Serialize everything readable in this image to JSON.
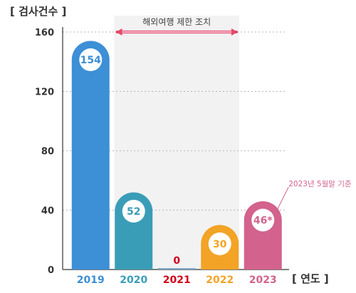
{
  "chart_data": {
    "type": "bar",
    "y_axis_title": "[ 검사건수 ]",
    "x_axis_title": "[ 연도 ]",
    "ylim": [
      0,
      160
    ],
    "y_ticks": [
      "0",
      "40",
      "80",
      "120",
      "160"
    ],
    "y_tick_values": [
      0,
      40,
      80,
      120,
      160
    ],
    "grid": "dotted horizontal",
    "categories": [
      "2019",
      "2020",
      "2021",
      "2022",
      "2023"
    ],
    "values": [
      154,
      52,
      0,
      30,
      46
    ],
    "value_labels": [
      "154",
      "52",
      "0",
      "30",
      "46*"
    ],
    "colors": [
      "#3d8fd6",
      "#3a9db8",
      "#d0021b",
      "#f3a325",
      "#d3628d"
    ],
    "label_colors": [
      "#3d8fd6",
      "#3a9db8",
      "#d0021b",
      "#f3a325",
      "#d3628d"
    ],
    "shaded_region": {
      "from": "2020",
      "to": "2022",
      "label": "해외여행 제한 조치",
      "color": "#f2f2f2",
      "arrow_color": "#e6486b"
    },
    "note": {
      "text": "2023년 5월말 기준",
      "category": "2023",
      "color": "#d3628d"
    }
  }
}
